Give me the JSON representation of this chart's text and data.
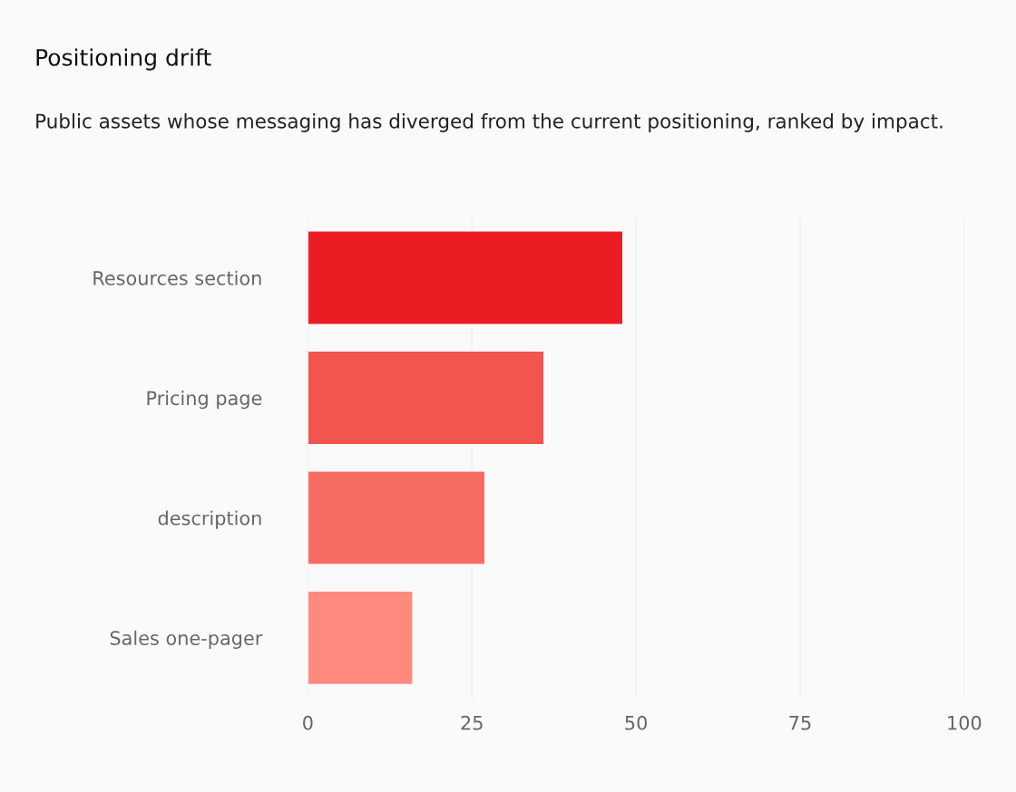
{
  "chart_data": {
    "type": "bar",
    "orientation": "horizontal",
    "title": "Positioning drift",
    "subtitle": "Public assets whose messaging has diverged from the current positioning, ranked by impact.",
    "categories": [
      "Resources section",
      "Pricing page",
      "description",
      "Sales one-pager"
    ],
    "values": [
      48,
      36,
      27,
      16
    ],
    "colors": [
      "#ec1c24",
      "#f2544e",
      "#f76c62",
      "#fe8a7d"
    ],
    "xlim": [
      0,
      100
    ],
    "xticks": [
      0,
      25,
      50,
      75,
      100
    ],
    "grid": "x"
  }
}
